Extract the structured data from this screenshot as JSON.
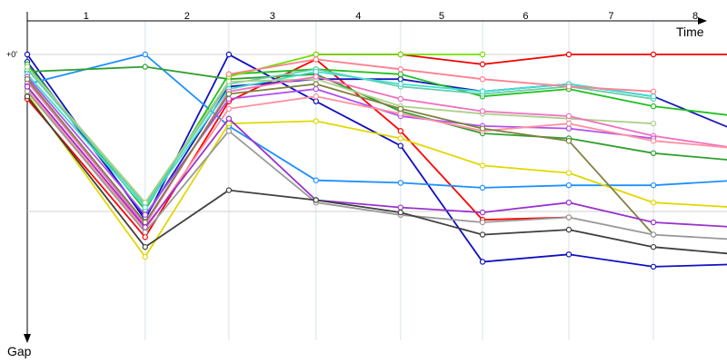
{
  "chart_data": {
    "type": "line",
    "x_axis_label": "Time",
    "y_axis_label": "Gap",
    "y_zero_label": "+0'",
    "lap_labels": [
      "1",
      "2",
      "3",
      "4",
      "5",
      "6",
      "7",
      "8"
    ],
    "x": [
      0,
      1.38,
      2.36,
      3.38,
      4.37,
      5.33,
      6.34,
      7.33,
      8.31
    ],
    "ylim": [
      0,
      1
    ],
    "series": [
      {
        "color": "#ff0000",
        "values": [
          0.18,
          0.74,
          0.19,
          0.02,
          0.31,
          0.67,
          0.66,
          null,
          null
        ]
      },
      {
        "color": "#f00000",
        "values": [
          null,
          null,
          null,
          0.0,
          0.0,
          0.04,
          0.0,
          0.0,
          0.0
        ]
      },
      {
        "color": "#1010c0",
        "values": [
          0.0,
          0.67,
          0.0,
          0.19,
          0.37,
          0.84,
          0.81,
          0.86,
          0.85
        ]
      },
      {
        "color": "#1a1ab8",
        "values": [
          0.03,
          0.66,
          0.13,
          0.1,
          0.1,
          0.15,
          0.12,
          0.17,
          0.31
        ]
      },
      {
        "color": "#1e90ff",
        "values": [
          0.12,
          0.0,
          0.29,
          0.51,
          0.52,
          0.54,
          0.53,
          0.53,
          0.51
        ]
      },
      {
        "color": "#30a030",
        "values": [
          0.07,
          0.05,
          0.1,
          0.08,
          0.23,
          0.32,
          0.34,
          0.4,
          0.43
        ]
      },
      {
        "color": "#22c022",
        "values": [
          0.04,
          0.63,
          0.08,
          0.06,
          0.08,
          0.17,
          0.14,
          0.21,
          0.25
        ]
      },
      {
        "color": "#70e000",
        "values": [
          null,
          null,
          0.09,
          0.0,
          0.0,
          0.0,
          null,
          null,
          null
        ]
      },
      {
        "color": "#66cdaa",
        "values": [
          0.06,
          0.61,
          0.12,
          0.06,
          0.13,
          0.16,
          0.13,
          0.18,
          null
        ]
      },
      {
        "color": "#40e0d0",
        "values": [
          0.08,
          0.62,
          0.14,
          0.07,
          0.12,
          0.15,
          0.12,
          0.17,
          null
        ]
      },
      {
        "color": "#add08a",
        "values": [
          0.05,
          0.6,
          0.11,
          0.1,
          0.21,
          0.24,
          0.26,
          0.28,
          null
        ]
      },
      {
        "color": "#f070c0",
        "values": [
          0.11,
          0.69,
          0.15,
          0.09,
          0.18,
          0.23,
          0.25,
          0.33,
          0.38
        ]
      },
      {
        "color": "#b050f0",
        "values": [
          0.09,
          0.65,
          0.18,
          0.14,
          0.25,
          0.29,
          0.3,
          0.34,
          null
        ]
      },
      {
        "color": "#ff90a0",
        "values": [
          0.14,
          0.71,
          0.22,
          0.17,
          0.24,
          0.31,
          0.28,
          0.35,
          0.38
        ]
      },
      {
        "color": "#ff8090",
        "values": [
          null,
          null,
          0.08,
          0.02,
          0.06,
          0.1,
          0.13,
          0.15,
          null
        ]
      },
      {
        "color": "#e0d800",
        "values": [
          0.16,
          0.82,
          0.28,
          0.27,
          0.34,
          0.45,
          0.48,
          0.6,
          0.62
        ]
      },
      {
        "color": "#808040",
        "values": [
          0.1,
          0.68,
          0.16,
          0.12,
          0.22,
          0.3,
          0.35,
          0.73,
          null
        ]
      },
      {
        "color": "#9932cc",
        "values": [
          0.13,
          0.7,
          0.26,
          0.59,
          0.62,
          0.64,
          0.6,
          0.68,
          0.7
        ]
      },
      {
        "color": "#999999",
        "values": [
          0.15,
          0.72,
          0.31,
          0.6,
          0.65,
          0.68,
          0.66,
          0.73,
          0.75
        ]
      },
      {
        "color": "#404040",
        "values": [
          0.17,
          0.78,
          0.55,
          0.59,
          0.64,
          0.73,
          0.71,
          0.78,
          0.81
        ]
      }
    ]
  }
}
